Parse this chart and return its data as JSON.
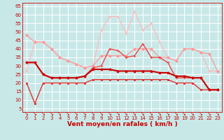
{
  "xlabel": "Vent moyen/en rafales ( km/h )",
  "bg_color": "#c8e8e8",
  "grid_color": "#ffffff",
  "x_ticks": [
    0,
    1,
    2,
    3,
    4,
    5,
    6,
    7,
    8,
    9,
    10,
    11,
    12,
    13,
    14,
    15,
    16,
    17,
    18,
    19,
    20,
    21,
    22,
    23
  ],
  "y_ticks": [
    5,
    10,
    15,
    20,
    25,
    30,
    35,
    40,
    45,
    50,
    55,
    60,
    65
  ],
  "ylim": [
    3,
    67
  ],
  "xlim": [
    -0.5,
    23.5
  ],
  "series": [
    {
      "x": [
        0,
        1,
        2,
        3,
        4,
        5,
        6,
        7,
        8,
        9,
        10,
        11,
        12,
        13,
        14,
        15,
        16,
        17,
        18,
        19,
        20,
        21,
        22,
        23
      ],
      "y": [
        27,
        44,
        44,
        40,
        35,
        33,
        31,
        29,
        30,
        51,
        59,
        59,
        49,
        62,
        51,
        55,
        44,
        35,
        33,
        40,
        40,
        38,
        27,
        27
      ],
      "color": "#ffbbbb",
      "lw": 0.9,
      "marker": "+",
      "ms": 3,
      "zorder": 2
    },
    {
      "x": [
        0,
        1,
        2,
        3,
        4,
        5,
        6,
        7,
        8,
        9,
        10,
        11,
        12,
        13,
        14,
        15,
        16,
        17,
        18,
        19,
        20,
        21,
        22,
        23
      ],
      "y": [
        48,
        44,
        44,
        40,
        35,
        33,
        31,
        29,
        30,
        36,
        36,
        36,
        36,
        40,
        40,
        40,
        35,
        35,
        33,
        40,
        40,
        38,
        37,
        27
      ],
      "color": "#ff9999",
      "lw": 0.9,
      "marker": "D",
      "ms": 2,
      "zorder": 3
    },
    {
      "x": [
        0,
        1,
        2,
        3,
        4,
        5,
        6,
        7,
        8,
        9,
        10,
        11,
        12,
        13,
        14,
        15,
        16,
        17,
        18,
        19,
        20,
        21,
        22,
        23
      ],
      "y": [
        32,
        32,
        25,
        23,
        23,
        23,
        23,
        24,
        29,
        30,
        40,
        39,
        35,
        36,
        43,
        35,
        35,
        32,
        23,
        23,
        23,
        23,
        16,
        16
      ],
      "color": "#ee4444",
      "lw": 1.0,
      "marker": "+",
      "ms": 3,
      "zorder": 4
    },
    {
      "x": [
        0,
        1,
        2,
        3,
        4,
        5,
        6,
        7,
        8,
        9,
        10,
        11,
        12,
        13,
        14,
        15,
        16,
        17,
        18,
        19,
        20,
        21,
        22,
        23
      ],
      "y": [
        32,
        32,
        25,
        23,
        23,
        23,
        23,
        24,
        28,
        28,
        28,
        27,
        27,
        27,
        27,
        27,
        26,
        26,
        24,
        24,
        23,
        23,
        16,
        16
      ],
      "color": "#cc0000",
      "lw": 1.5,
      "marker": "*",
      "ms": 3,
      "zorder": 5
    },
    {
      "x": [
        0,
        1,
        2,
        3,
        4,
        5,
        6,
        7,
        8,
        9,
        10,
        11,
        12,
        13,
        14,
        15,
        16,
        17,
        18,
        19,
        20,
        21,
        22,
        23
      ],
      "y": [
        20,
        8,
        20,
        20,
        20,
        20,
        20,
        20,
        22,
        22,
        22,
        22,
        22,
        22,
        22,
        22,
        22,
        22,
        20,
        20,
        20,
        16,
        16,
        16
      ],
      "color": "#dd3333",
      "lw": 1.0,
      "marker": "s",
      "ms": 2,
      "zorder": 4
    }
  ],
  "tick_fontsize": 5.0,
  "xlabel_fontsize": 6.5,
  "tick_color": "#cc0000",
  "arrow_char": "↘"
}
